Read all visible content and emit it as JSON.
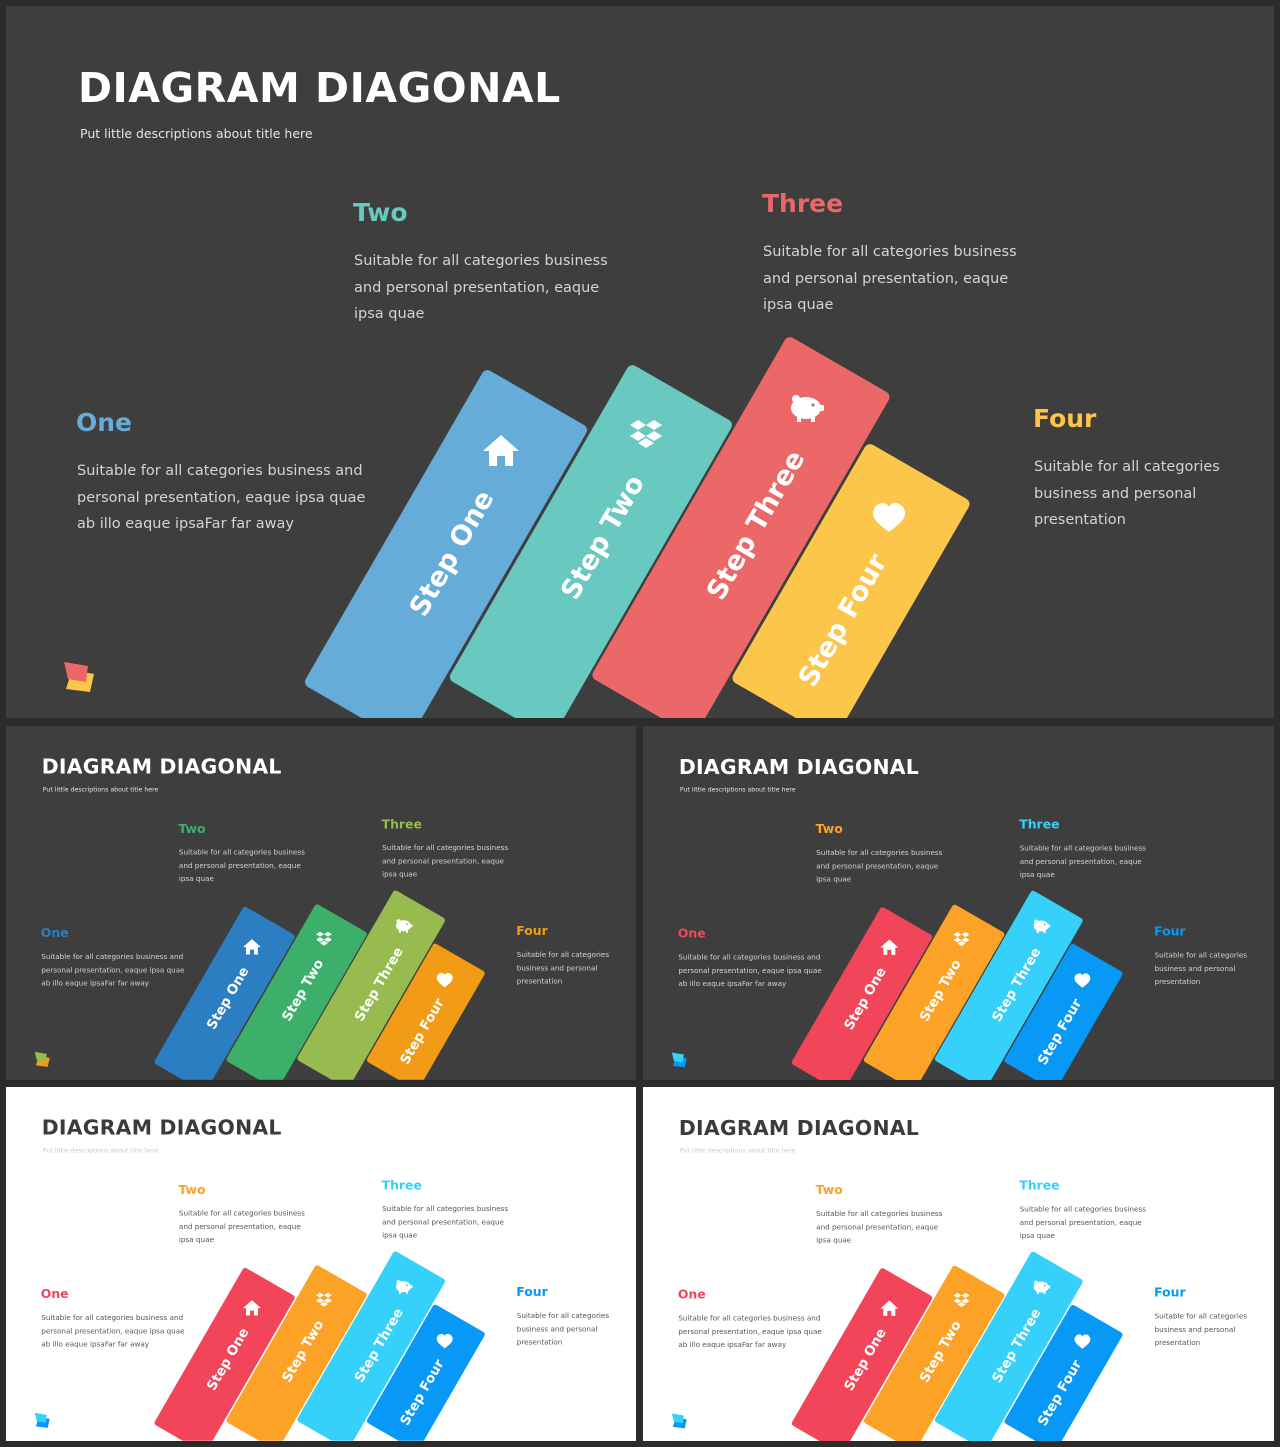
{
  "slides": [
    {
      "theme": "dark",
      "background": "#3e3e3e",
      "title_color": "#ffffff",
      "subtitle_color": "#e6e6e6",
      "desc_color": "#d4d4d4",
      "colors": [
        "#66acd8",
        "#69c9c0",
        "#ec6868",
        "#fcc64a"
      ],
      "logo_colors": [
        "#ec6868",
        "#fcc64a"
      ],
      "title": "DIAGRAM DIAGONAL",
      "subtitle": "Put little descriptions about title here",
      "items": [
        {
          "heading": "One",
          "text": "Suitable for all categories business and personal presentation, eaque ipsa quae ab illo eaque ipsaFar far away",
          "bar_label": "Step One",
          "icon": "home-icon"
        },
        {
          "heading": "Two",
          "text": "Suitable for all categories business and personal presentation, eaque ipsa quae",
          "bar_label": "Step Two",
          "icon": "dropbox-icon"
        },
        {
          "heading": "Three",
          "text": "Suitable for all categories business and personal presentation, eaque ipsa quae",
          "bar_label": "Step Three",
          "icon": "piggy-bank-icon"
        },
        {
          "heading": "Four",
          "text": "Suitable for all categories business and personal presentation",
          "bar_label": "Step Four",
          "icon": "heart-icon"
        }
      ]
    },
    {
      "theme": "dark",
      "background": "#3e3e3e",
      "title_color": "#ffffff",
      "subtitle_color": "#e6e6e6",
      "desc_color": "#d4d4d4",
      "colors": [
        "#2a7ec1",
        "#3cb06a",
        "#97bb4e",
        "#f29b16"
      ],
      "logo_colors": [
        "#97bb4e",
        "#f29b16"
      ],
      "title": "DIAGRAM DIAGONAL",
      "subtitle": "Put little descriptions about title here",
      "items": [
        {
          "heading": "One",
          "text": "Suitable for all categories business and personal presentation, eaque ipsa quae ab illo eaque ipsaFar far away",
          "bar_label": "Step One",
          "icon": "home-icon"
        },
        {
          "heading": "Two",
          "text": "Suitable for all categories business and personal presentation, eaque ipsa quae",
          "bar_label": "Step Two",
          "icon": "dropbox-icon"
        },
        {
          "heading": "Three",
          "text": "Suitable for all categories business and personal presentation, eaque ipsa quae",
          "bar_label": "Step Three",
          "icon": "piggy-bank-icon"
        },
        {
          "heading": "Four",
          "text": "Suitable for all categories business and personal presentation",
          "bar_label": "Step Four",
          "icon": "heart-icon"
        }
      ]
    },
    {
      "theme": "dark",
      "background": "#3e3e3e",
      "title_color": "#ffffff",
      "subtitle_color": "#e6e6e6",
      "desc_color": "#d4d4d4",
      "colors": [
        "#f2455a",
        "#fba227",
        "#35d1fa",
        "#0898f5"
      ],
      "logo_colors": [
        "#35d1fa",
        "#0898f5"
      ],
      "title": "DIAGRAM DIAGONAL",
      "subtitle": "Put little descriptions about title here",
      "items": [
        {
          "heading": "One",
          "text": "Suitable for all categories business and personal presentation, eaque ipsa quae ab illo eaque ipsaFar far away",
          "bar_label": "Step One",
          "icon": "home-icon"
        },
        {
          "heading": "Two",
          "text": "Suitable for all categories business and personal presentation, eaque ipsa quae",
          "bar_label": "Step Two",
          "icon": "dropbox-icon"
        },
        {
          "heading": "Three",
          "text": "Suitable for all categories business and personal presentation, eaque ipsa quae",
          "bar_label": "Step Three",
          "icon": "piggy-bank-icon"
        },
        {
          "heading": "Four",
          "text": "Suitable for all categories business and personal presentation",
          "bar_label": "Step Four",
          "icon": "heart-icon"
        }
      ]
    },
    {
      "theme": "light",
      "background": "#ffffff",
      "title_color": "#3b3b3b",
      "subtitle_color": "#c8c8c8",
      "desc_color": "#555555",
      "colors": [
        "#f2455a",
        "#fba227",
        "#35d1fa",
        "#0898f5"
      ],
      "logo_colors": [
        "#35d1fa",
        "#0898f5"
      ],
      "title": "DIAGRAM DIAGONAL",
      "subtitle": "Put little descriptions about title here",
      "items": [
        {
          "heading": "One",
          "text": "Suitable for all categories business and personal presentation, eaque ipsa quae ab illo eaque ipsaFar far away",
          "bar_label": "Step One",
          "icon": "home-icon"
        },
        {
          "heading": "Two",
          "text": "Suitable for all categories business and personal presentation, eaque ipsa quae",
          "bar_label": "Step Two",
          "icon": "dropbox-icon"
        },
        {
          "heading": "Three",
          "text": "Suitable for all categories business and personal presentation, eaque ipsa quae",
          "bar_label": "Step Three",
          "icon": "piggy-bank-icon"
        },
        {
          "heading": "Four",
          "text": "Suitable for all categories business and personal presentation",
          "bar_label": "Step Four",
          "icon": "heart-icon"
        }
      ]
    },
    {
      "theme": "light",
      "background": "#ffffff",
      "title_color": "#3b3b3b",
      "subtitle_color": "#c8c8c8",
      "desc_color": "#555555",
      "colors": [
        "#f2455a",
        "#fba227",
        "#35d1fa",
        "#0898f5"
      ],
      "logo_colors": [
        "#35d1fa",
        "#0898f5"
      ],
      "title": "DIAGRAM DIAGONAL",
      "subtitle": "Put little descriptions about title here",
      "items": [
        {
          "heading": "One",
          "text": "Suitable for all categories business and personal presentation, eaque ipsa quae ab illo eaque ipsaFar far away",
          "bar_label": "Step One",
          "icon": "home-icon"
        },
        {
          "heading": "Two",
          "text": "Suitable for all categories business and personal presentation, eaque ipsa quae",
          "bar_label": "Step Two",
          "icon": "dropbox-icon"
        },
        {
          "heading": "Three",
          "text": "Suitable for all categories business and personal presentation, eaque ipsa quae",
          "bar_label": "Step Three",
          "icon": "piggy-bank-icon"
        },
        {
          "heading": "Four",
          "text": "Suitable for all categories business and personal presentation",
          "bar_label": "Step Four",
          "icon": "heart-icon"
        }
      ]
    }
  ]
}
